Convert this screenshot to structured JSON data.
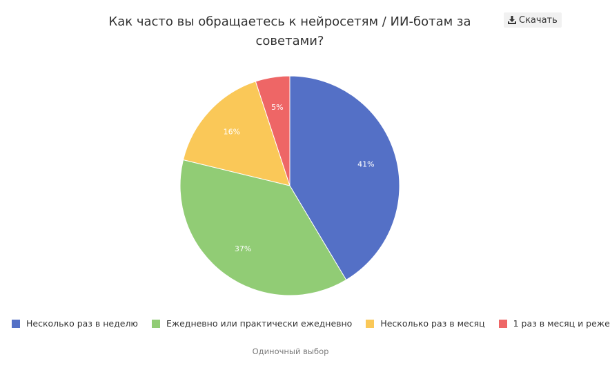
{
  "header": {
    "title": "Как часто вы обращаетесь к нейросетям / ИИ-ботам за советами?",
    "download_label": "Скачать"
  },
  "footer": {
    "caption": "Одиночный выбор"
  },
  "chart_data": {
    "type": "pie",
    "title": "Как часто вы обращаетесь к нейросетям / ИИ-ботам за советами?",
    "categories": [
      "Несколько раз в неделю",
      "Ежедневно или практически ежедневно",
      "Несколько раз в месяц",
      "1 раз в месяц и реже"
    ],
    "values": [
      41,
      37,
      16,
      5
    ],
    "labels": [
      "41%",
      "37%",
      "16%",
      "5%"
    ],
    "colors": [
      "#5470c6",
      "#91cc75",
      "#fac858",
      "#ee6666"
    ],
    "legend_position": "bottom"
  }
}
